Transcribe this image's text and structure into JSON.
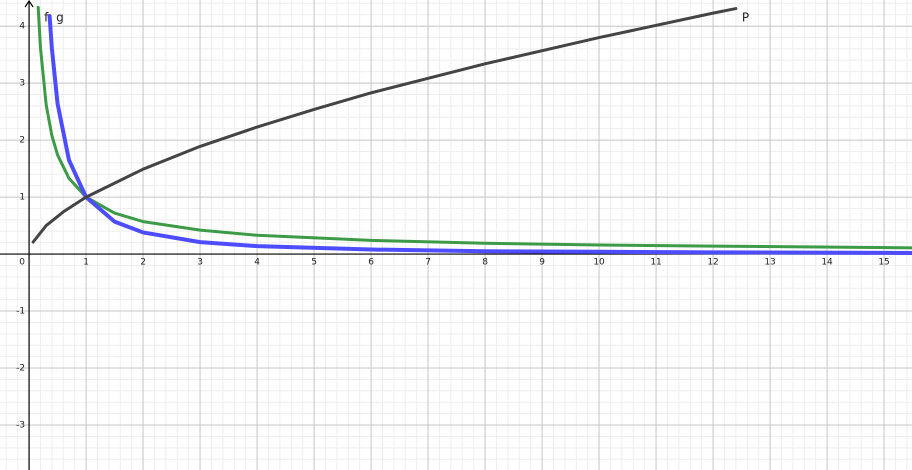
{
  "chart_data": {
    "type": "line",
    "xlim": [
      -0.51,
      15.49
    ],
    "ylim": [
      -3.79,
      4.46
    ],
    "xticks": [
      0,
      1,
      2,
      3,
      4,
      5,
      6,
      7,
      8,
      9,
      10,
      11,
      12,
      13,
      14,
      15
    ],
    "yticks": [
      -3,
      -2,
      -1,
      1,
      2,
      3,
      4
    ],
    "grid": true,
    "series": [
      {
        "name": "f",
        "color": "#3d9a47",
        "x": [
          0.16,
          0.2,
          0.3,
          0.4,
          0.5,
          0.7,
          1,
          1.5,
          2,
          3,
          4,
          6,
          8,
          10,
          12,
          15.5
        ],
        "values": [
          4.33,
          3.62,
          2.62,
          2.08,
          1.74,
          1.33,
          1,
          0.72,
          0.57,
          0.42,
          0.33,
          0.24,
          0.19,
          0.16,
          0.14,
          0.11
        ]
      },
      {
        "name": "g",
        "color": "#4d4dff",
        "x": [
          0.36,
          0.4,
          0.5,
          0.7,
          1,
          1.5,
          2,
          3,
          4,
          6,
          8,
          10,
          12,
          15.5
        ],
        "values": [
          4.18,
          3.61,
          2.64,
          1.65,
          1,
          0.57,
          0.38,
          0.21,
          0.14,
          0.08,
          0.05,
          0.04,
          0.03,
          0.02
        ]
      },
      {
        "name": "P",
        "color": "#444444",
        "x": [
          0.07,
          0.3,
          0.6,
          1,
          2,
          3,
          4,
          5,
          6,
          8,
          10,
          12,
          12.4
        ],
        "values": [
          0.21,
          0.5,
          0.74,
          1,
          1.49,
          1.89,
          2.23,
          2.54,
          2.83,
          3.34,
          3.8,
          4.23,
          4.31
        ]
      }
    ]
  }
}
